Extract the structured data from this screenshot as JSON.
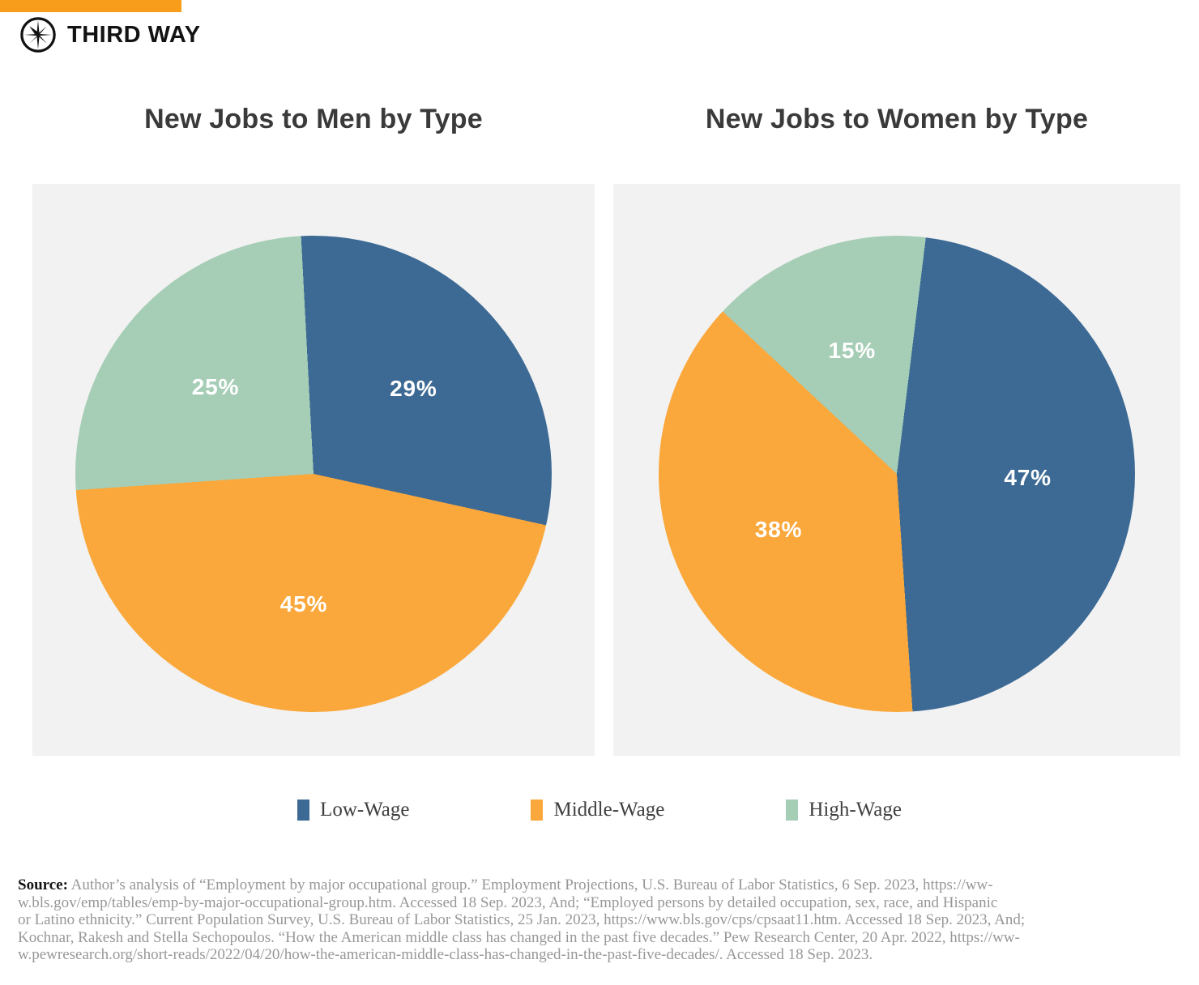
{
  "brand": {
    "name": "THIRD WAY",
    "accent_color": "#f89c1c"
  },
  "chart_data": [
    {
      "type": "pie",
      "title": "New Jobs to Men by Type",
      "categories": [
        "Low-Wage",
        "Middle-Wage",
        "High-Wage"
      ],
      "values": [
        29,
        45,
        25
      ],
      "labels": [
        "29%",
        "45%",
        "25%"
      ],
      "colors": [
        "#3d6a94",
        "#faa83c",
        "#a6cdb6"
      ],
      "start_angle_deg": -3,
      "label_radius": 0.55,
      "legend_position": "shared-bottom"
    },
    {
      "type": "pie",
      "title": "New Jobs to Women by Type",
      "categories": [
        "Low-Wage",
        "Middle-Wage",
        "High-Wage"
      ],
      "values": [
        47,
        38,
        15
      ],
      "labels": [
        "47%",
        "38%",
        "15%"
      ],
      "colors": [
        "#3d6a94",
        "#faa83c",
        "#a6cdb6"
      ],
      "start_angle_deg": 7,
      "label_radius": 0.55,
      "legend_position": "shared-bottom"
    }
  ],
  "legend": {
    "items": [
      {
        "label": "Low-Wage",
        "color": "#3d6a94"
      },
      {
        "label": "Middle-Wage",
        "color": "#faa83c"
      },
      {
        "label": "High-Wage",
        "color": "#a6cdb6"
      }
    ]
  },
  "source": {
    "label": "Source:",
    "lines": [
      "Author’s analysis of “Employment by major occupational group.” Employment Projections, U.S. Bureau of Labor Statistics, 6 Sep. 2023, https://ww-",
      "w.bls.gov/emp/tables/emp-by-major-occupational-group.htm. Accessed 18 Sep. 2023, And; “Employed persons by detailed occupation, sex, race, and Hispanic",
      "or Latino ethnicity.” Current Population Survey, U.S. Bureau of Labor Statistics, 25 Jan. 2023, https://www.bls.gov/cps/cpsaat11.htm. Accessed 18 Sep. 2023, And;",
      "Kochnar, Rakesh and Stella Sechopoulos. “How the American middle class has changed in the past five decades.” Pew Research Center, 20 Apr. 2022, https://ww-",
      "w.pewresearch.org/short-reads/2022/04/20/how-the-american-middle-class-has-changed-in-the-past-five-decades/. Accessed 18 Sep. 2023."
    ]
  }
}
